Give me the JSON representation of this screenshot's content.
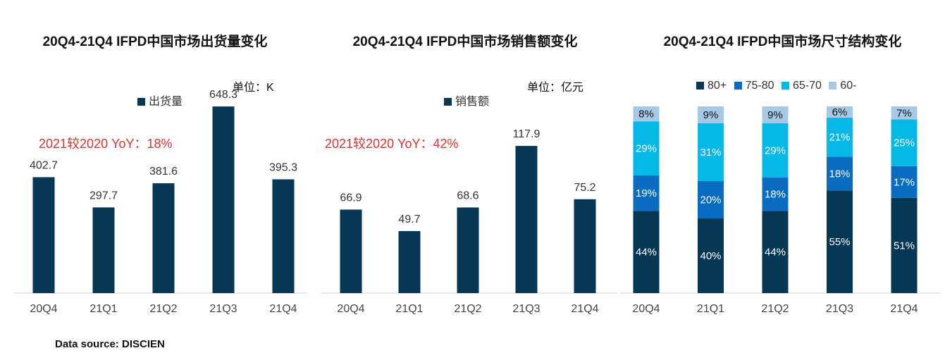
{
  "source": "Data source: DISCIEN",
  "chart_data": [
    {
      "type": "bar",
      "title": "20Q4-21Q4 IFPD中国市场出货量变化",
      "unit": "单位：K",
      "annotation": "2021较2020 YoY：18%",
      "categories": [
        "20Q4",
        "21Q1",
        "21Q2",
        "21Q3",
        "21Q4"
      ],
      "series": [
        {
          "name": "出货量",
          "color": "#063755",
          "values": [
            402.7,
            297.7,
            381.6,
            648.3,
            395.3
          ]
        }
      ],
      "ylim": [
        0,
        700
      ],
      "grid": false,
      "legend": "top"
    },
    {
      "type": "bar",
      "title": "20Q4-21Q4 IFPD中国市场销售额变化",
      "unit": "单位：亿元",
      "annotation": "2021较2020 YoY：42%",
      "categories": [
        "20Q4",
        "21Q1",
        "21Q2",
        "21Q3",
        "21Q4"
      ],
      "series": [
        {
          "name": "销售额",
          "color": "#063755",
          "values": [
            66.9,
            49.7,
            68.6,
            117.9,
            75.2
          ]
        }
      ],
      "ylim": [
        0,
        127
      ],
      "grid": false,
      "legend": "top"
    },
    {
      "type": "bar",
      "stacked": true,
      "title": "20Q4-21Q4 IFPD中国市场尺寸结构变化",
      "categories": [
        "20Q4",
        "21Q1",
        "21Q2",
        "21Q3",
        "21Q4"
      ],
      "series": [
        {
          "name": "80+",
          "color": "#063755",
          "values": [
            44,
            40,
            44,
            55,
            51
          ]
        },
        {
          "name": "75-80",
          "color": "#0a6cc0",
          "values": [
            19,
            20,
            18,
            18,
            17
          ]
        },
        {
          "name": "65-70",
          "color": "#05b8e6",
          "values": [
            29,
            31,
            29,
            21,
            25
          ]
        },
        {
          "name": "60-",
          "color": "#a7c9e8",
          "values": [
            8,
            9,
            9,
            6,
            7
          ]
        }
      ],
      "value_suffix": "%",
      "ylim": [
        0,
        100
      ],
      "grid": false,
      "legend": "top"
    }
  ]
}
